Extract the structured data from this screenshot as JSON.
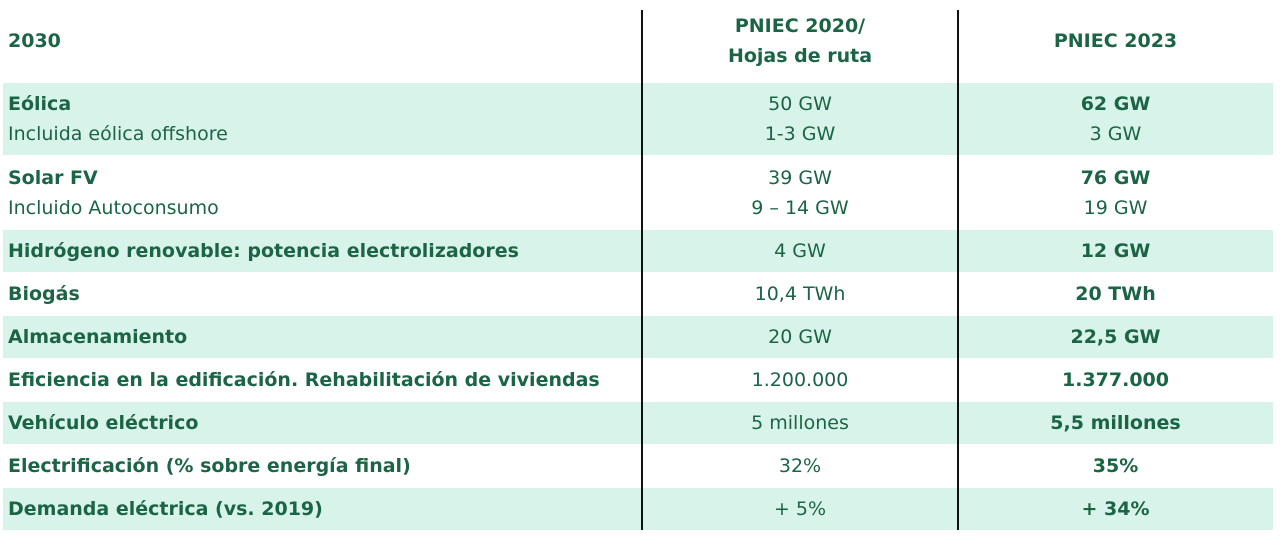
{
  "header": {
    "label": "2030",
    "col2": [
      "PNIEC 2020/",
      "Hojas de ruta"
    ],
    "col3": "PNIEC 2023"
  },
  "colors": {
    "text": "#1c6446",
    "band": "#d8f4ea",
    "divider": "#111111"
  },
  "rows": [
    {
      "label": "Eólica",
      "sublabel": "Incluida eólica offshore",
      "v2020": "50 GW",
      "v2020_sub": "1-3 GW",
      "v2023": "62 GW",
      "v2023_sub": "3 GW"
    },
    {
      "label": "Solar FV",
      "sublabel": "Incluido Autoconsumo",
      "v2020": "39 GW",
      "v2020_sub": "9 – 14 GW",
      "v2023": "76 GW",
      "v2023_sub": "19 GW"
    },
    {
      "label": "Hidrógeno renovable: potencia electrolizadores",
      "v2020": "4 GW",
      "v2023": "12 GW"
    },
    {
      "label": "Biogás",
      "v2020": "10,4 TWh",
      "v2023": "20 TWh"
    },
    {
      "label": "Almacenamiento",
      "v2020": "20 GW",
      "v2023": "22,5 GW"
    },
    {
      "label": "Eficiencia en la edificación. Rehabilitación de viviendas",
      "v2020": "1.200.000",
      "v2023": "1.377.000"
    },
    {
      "label": "Vehículo eléctrico",
      "v2020": "5 millones",
      "v2023": "5,5 millones"
    },
    {
      "label": "Electrificación (% sobre energía final)",
      "v2020": "32%",
      "v2023": "35%"
    },
    {
      "label": "Demanda eléctrica (vs. 2019)",
      "v2020": "+ 5%",
      "v2023": "+ 34%"
    }
  ]
}
